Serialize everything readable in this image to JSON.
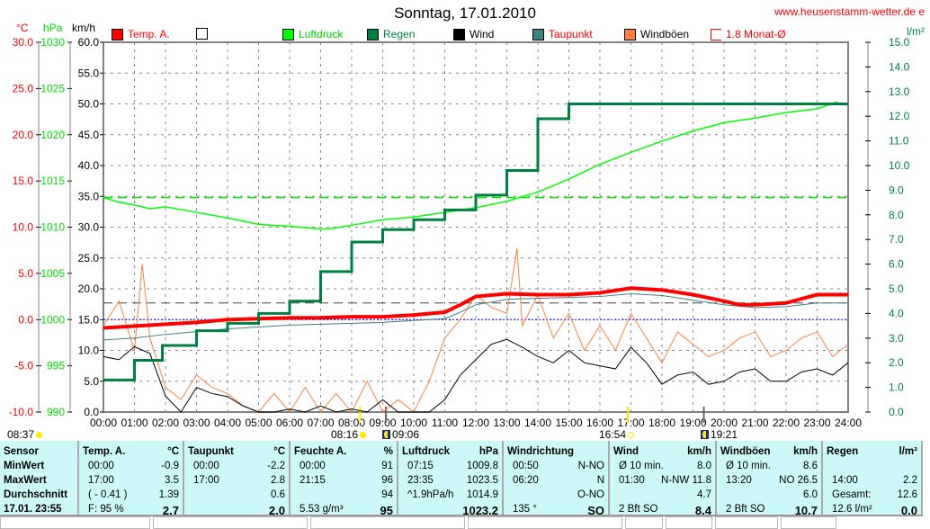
{
  "header": {
    "title": "Sonntag, 17.01.2010",
    "site": "www.heusenstamm-wetter.de e"
  },
  "axes": {
    "temp_unit": "°C",
    "press_unit": "hPa",
    "wind_unit": "km/h",
    "rain_unit": "l/m²",
    "temp_ticks": [
      "30.0",
      "25.0",
      "20.0",
      "15.0",
      "10.0",
      "5.0",
      "0.0",
      "-5.0",
      "-10.0"
    ],
    "press_ticks": [
      "1030",
      "1025",
      "1020",
      "1015",
      "1010",
      "1005",
      "1000",
      "995",
      "990"
    ],
    "wind_ticks": [
      "60.0",
      "55.0",
      "50.0",
      "45.0",
      "40.0",
      "35.0",
      "30.0",
      "25.0",
      "20.0",
      "15.0",
      "10.0",
      "5.0",
      "0.0"
    ],
    "rain_ticks": [
      "15.0",
      "14.0",
      "13.0",
      "12.0",
      "11.0",
      "10.0",
      "9.0",
      "8.0",
      "7.0",
      "6.0",
      "5.0",
      "4.0",
      "3.0",
      "2.0",
      "1.0",
      "0.0"
    ],
    "time_ticks": [
      "00:00",
      "01:00",
      "02:00",
      "03:00",
      "04:00",
      "05:00",
      "06:00",
      "07:00",
      "08:00",
      "09:00",
      "10:00",
      "11:00",
      "12:00",
      "13:00",
      "14:00",
      "15:00",
      "16:00",
      "17:00",
      "18:00",
      "19:00",
      "20:00",
      "21:00",
      "22:00",
      "23:00",
      "24:00"
    ]
  },
  "legend": [
    {
      "label": "Temp. A.",
      "color": "#ff0000",
      "text": "#ff0000"
    },
    {
      "label": "",
      "color": "#ffffff",
      "text": "#000"
    },
    {
      "label": "Luftdruck",
      "color": "#00ff00",
      "text": "#00cc00"
    },
    {
      "label": "Regen",
      "color": "#008040",
      "text": "#008040"
    },
    {
      "label": "Wind",
      "color": "#000000",
      "text": "#000"
    },
    {
      "label": "Taupunkt",
      "color": "#408080",
      "text": "#ff0000"
    },
    {
      "label": "Windböen",
      "color": "#ff8040",
      "text": "#000"
    },
    {
      "label": "1.8 Monat-Ø",
      "color": "#ffffff",
      "text": "#ff0000"
    }
  ],
  "events": [
    {
      "time": "08:37",
      "kind": "moon-set"
    },
    {
      "time": "08:16",
      "kind": "sunrise"
    },
    {
      "time": "09:06",
      "kind": "moonrise"
    },
    {
      "time": "16:54",
      "kind": "sunset"
    },
    {
      "time": "19:21",
      "kind": "moon"
    }
  ],
  "chart_data": {
    "type": "line",
    "title": "Sonntag, 17.01.2010",
    "xlabel": "Uhrzeit",
    "xlim": [
      0,
      24
    ],
    "ylim_temp": [
      -10,
      30
    ],
    "ylim_press": [
      990,
      1030
    ],
    "ylim_wind": [
      0,
      60
    ],
    "ylim_rain": [
      0,
      15
    ],
    "month_avg_temp": 1.8,
    "ref_pressure": 1013.2,
    "series": [
      {
        "name": "Temp. A.",
        "unit": "°C",
        "color": "#ff0000",
        "x": [
          0,
          1,
          2,
          3,
          4,
          5,
          6,
          7,
          8,
          9,
          10,
          11,
          11.5,
          12,
          13,
          14,
          15,
          16,
          17,
          18,
          19,
          20,
          20.5,
          21,
          22,
          23,
          24
        ],
        "y": [
          -0.9,
          -0.7,
          -0.5,
          -0.3,
          0,
          0.1,
          0.2,
          0.2,
          0.3,
          0.3,
          0.5,
          0.8,
          1.6,
          2.5,
          2.8,
          2.7,
          2.7,
          2.9,
          3.4,
          3.2,
          2.7,
          2.0,
          1.6,
          1.6,
          1.8,
          2.7,
          2.7
        ]
      },
      {
        "name": "Taupunkt",
        "unit": "°C",
        "color": "#408080",
        "x": [
          0,
          1,
          2,
          3,
          4,
          5,
          6,
          7,
          8,
          9,
          10,
          11,
          11.5,
          12,
          13,
          14,
          15,
          16,
          17,
          18,
          19,
          20,
          21,
          22,
          23,
          24
        ],
        "y": [
          -2.2,
          -2.0,
          -1.6,
          -1.3,
          -1.0,
          -0.8,
          -0.6,
          -0.5,
          -0.4,
          -0.3,
          -0.1,
          0.1,
          0.8,
          1.6,
          2.2,
          2.3,
          2.4,
          2.5,
          2.8,
          2.6,
          2.1,
          1.6,
          1.3,
          1.4,
          1.8,
          1.8
        ]
      },
      {
        "name": "Luftdruck",
        "unit": "hPa",
        "color": "#00ff00",
        "x": [
          0,
          0.5,
          1,
          1.5,
          2,
          3,
          4,
          5,
          6,
          7,
          7.25,
          8,
          9,
          10,
          11,
          12,
          13,
          14,
          15,
          16,
          17,
          18,
          19,
          20,
          21,
          22,
          23,
          23.6,
          24
        ],
        "y": [
          1013.2,
          1012.7,
          1012.4,
          1012.0,
          1012.2,
          1011.6,
          1011.0,
          1010.3,
          1010.1,
          1009.8,
          1009.8,
          1010.2,
          1010.8,
          1011.1,
          1011.6,
          1012.1,
          1012.8,
          1013.8,
          1015.2,
          1016.8,
          1018.1,
          1019.3,
          1020.4,
          1021.3,
          1021.8,
          1022.4,
          1022.8,
          1023.5,
          1023.2
        ]
      },
      {
        "name": "Regen",
        "unit": "l/m²",
        "color": "#008040",
        "x": [
          0,
          1,
          1.9,
          3,
          4,
          5,
          6,
          7,
          8,
          9,
          10,
          11,
          12,
          13,
          14,
          15,
          24
        ],
        "y": [
          1.3,
          2.1,
          2.7,
          3.3,
          3.6,
          4.0,
          4.5,
          5.7,
          6.9,
          7.4,
          7.8,
          8.2,
          8.8,
          9.8,
          11.9,
          12.5,
          12.5
        ]
      },
      {
        "name": "Wind",
        "unit": "km/h",
        "color": "#000000",
        "x": [
          0,
          0.5,
          1,
          1.5,
          2,
          2.5,
          3,
          3.5,
          4,
          4.5,
          5,
          5.5,
          6,
          6.5,
          7,
          7.5,
          8,
          8.5,
          9,
          9.5,
          10,
          10.5,
          11,
          11.5,
          12,
          12.5,
          13,
          13.5,
          14,
          14.5,
          15,
          15.5,
          16,
          16.5,
          17,
          17.5,
          18,
          18.5,
          19,
          19.5,
          20,
          20.5,
          21,
          21.5,
          22,
          22.5,
          23,
          23.5,
          24
        ],
        "y": [
          9,
          8.5,
          10.6,
          9.5,
          2.6,
          0,
          4,
          3,
          2.5,
          1,
          0,
          0,
          0.5,
          0,
          1,
          0,
          0.5,
          0,
          2,
          0,
          0,
          0,
          2,
          6,
          8.5,
          11,
          11.8,
          10.5,
          9,
          8,
          10,
          8,
          7.5,
          7,
          10.5,
          8,
          4.5,
          6,
          6.5,
          4.5,
          5,
          6.5,
          7,
          5,
          5,
          6.5,
          7,
          6,
          8
        ]
      },
      {
        "name": "Windböen",
        "unit": "km/h",
        "color": "#ff8040",
        "x": [
          0,
          0.5,
          1,
          1.25,
          1.5,
          2,
          2.5,
          3,
          3.5,
          4,
          4.5,
          5,
          5.5,
          6,
          6.5,
          7,
          7.5,
          8,
          8.5,
          9,
          9.5,
          10,
          10.5,
          11,
          11.5,
          12,
          12.5,
          13,
          13.33,
          13.5,
          14,
          14.5,
          15,
          15.5,
          16,
          16.5,
          17,
          17.5,
          18,
          18.5,
          19,
          19.5,
          20,
          20.5,
          21,
          21.5,
          22,
          22.5,
          23,
          23.5,
          24
        ],
        "y": [
          14,
          18,
          10,
          24,
          12,
          4,
          2,
          6,
          4,
          3,
          1,
          0,
          3,
          0,
          4,
          0,
          3,
          0,
          5,
          0,
          2,
          0,
          5,
          12,
          15,
          19,
          17,
          16,
          26.5,
          14,
          19,
          12,
          16,
          10,
          14,
          10,
          16,
          12,
          8,
          13,
          11,
          9,
          10,
          12,
          13,
          9,
          10,
          12,
          13,
          9,
          11
        ]
      }
    ]
  },
  "table": {
    "sensor": {
      "h": "Sensor",
      "r": [
        "MinWert",
        "MaxWert",
        "Durchschnitt",
        "17.01. 23:55"
      ]
    },
    "temp": {
      "h": "Temp. A.",
      "u": "°C",
      "l": [
        "00:00",
        "17:00",
        "( - 0.41 )",
        "F: 95 %"
      ],
      "v": [
        "-0.9",
        "3.5",
        "1.39",
        "2.7"
      ]
    },
    "dew": {
      "h": "Taupunkt",
      "u": "°C",
      "l": [
        "00:00",
        "17:00",
        "",
        ""
      ],
      "v": [
        "-2.2",
        "2.8",
        "0.6",
        "2.0"
      ]
    },
    "hum": {
      "h": "Feuchte A.",
      "u": "%",
      "l": [
        "00:00",
        "21:15",
        "",
        "5.53 g/m³"
      ],
      "v": [
        "91",
        "96",
        "94",
        "95"
      ]
    },
    "press": {
      "h": "Luftdruck",
      "u": "hPa",
      "l": [
        "07:15",
        "23:35",
        "^1.9hPa/h",
        ""
      ],
      "v": [
        "1009.8",
        "1023.5",
        "1014.9",
        "1023.2"
      ]
    },
    "dir": {
      "h": "Windrichtung",
      "u": "",
      "l": [
        "00:50",
        "06:20",
        "",
        "135 °"
      ],
      "v": [
        "N-NO",
        "N",
        "O-NO",
        "SO"
      ]
    },
    "wind": {
      "h": "Wind",
      "u": "km/h",
      "l": [
        "Ø 10 min.",
        "01:30",
        "",
        "2 Bft SO"
      ],
      "v": [
        "8.0",
        "N-NW 11.8",
        "4.7",
        "8.4"
      ]
    },
    "gust": {
      "h": "Windböen",
      "u": "km/h",
      "l": [
        "Ø 10 min.",
        "13:20",
        "",
        "2 Bft SO"
      ],
      "v": [
        "8.6",
        "NO 26.5",
        "6.0",
        "10.7"
      ]
    },
    "rain": {
      "h": "Regen",
      "u": "l/m²",
      "l": [
        "",
        "14:00",
        "Gesamt:",
        "12.6 l/m²"
      ],
      "v": [
        "",
        "2.2",
        "12.6",
        "0.0"
      ]
    }
  }
}
